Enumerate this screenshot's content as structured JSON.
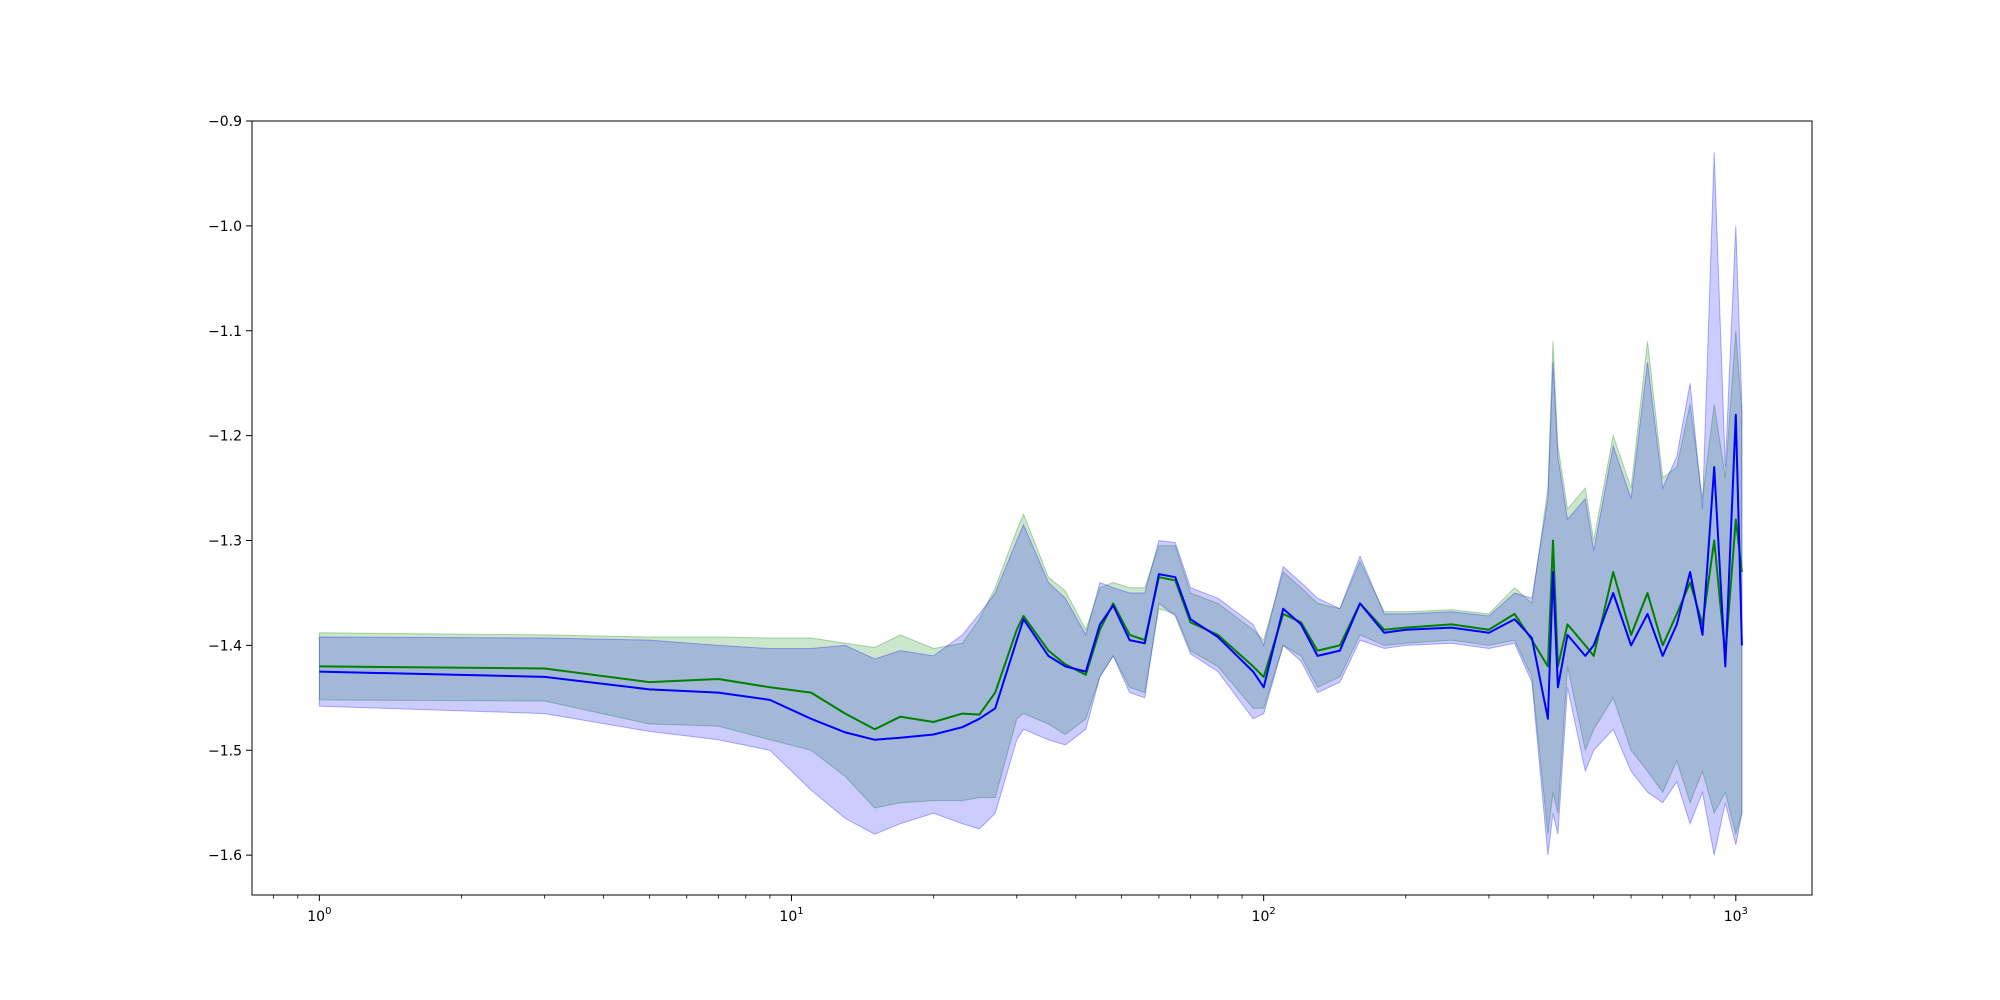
{
  "chart_data": {
    "type": "line",
    "title": "",
    "xlabel": "",
    "ylabel": "",
    "xscale": "log",
    "xlim": [
      0.72,
      1450
    ],
    "ylim": [
      -1.638,
      -0.9
    ],
    "grid": false,
    "legend": null,
    "x_ticks": [
      {
        "value": 1,
        "base": "10",
        "exp": "0"
      },
      {
        "value": 10,
        "base": "10",
        "exp": "1"
      },
      {
        "value": 100,
        "base": "10",
        "exp": "2"
      },
      {
        "value": 1000,
        "base": "10",
        "exp": "3"
      }
    ],
    "y_ticks": [
      {
        "value": -0.9,
        "label": "−0.9"
      },
      {
        "value": -1.0,
        "label": "−1.0"
      },
      {
        "value": -1.1,
        "label": "−1.1"
      },
      {
        "value": -1.2,
        "label": "−1.2"
      },
      {
        "value": -1.3,
        "label": "−1.3"
      },
      {
        "value": -1.4,
        "label": "−1.4"
      },
      {
        "value": -1.5,
        "label": "−1.5"
      },
      {
        "value": -1.6,
        "label": "−1.6"
      }
    ],
    "series": [
      {
        "color": "#008000",
        "band_color": "#008000",
        "band_opacity": 0.2,
        "x": [
          1,
          3,
          5,
          7,
          9,
          11,
          13,
          15,
          17,
          20,
          23,
          25,
          27,
          30,
          31,
          35,
          38,
          42,
          45,
          48,
          52,
          56,
          60,
          65,
          70,
          80,
          95,
          100,
          110,
          120,
          130,
          145,
          160,
          180,
          200,
          250,
          300,
          340,
          370,
          400,
          410,
          420,
          440,
          480,
          500,
          550,
          600,
          650,
          700,
          750,
          800,
          850,
          900,
          950,
          1000,
          1030
        ],
        "values": [
          -1.42,
          -1.422,
          -1.435,
          -1.432,
          -1.44,
          -1.445,
          -1.465,
          -1.48,
          -1.468,
          -1.473,
          -1.465,
          -1.466,
          -1.445,
          -1.385,
          -1.372,
          -1.405,
          -1.418,
          -1.428,
          -1.385,
          -1.36,
          -1.39,
          -1.395,
          -1.335,
          -1.338,
          -1.378,
          -1.39,
          -1.42,
          -1.43,
          -1.37,
          -1.378,
          -1.405,
          -1.4,
          -1.36,
          -1.385,
          -1.383,
          -1.38,
          -1.385,
          -1.37,
          -1.395,
          -1.42,
          -1.3,
          -1.42,
          -1.38,
          -1.4,
          -1.41,
          -1.33,
          -1.39,
          -1.35,
          -1.4,
          -1.37,
          -1.34,
          -1.38,
          -1.3,
          -1.41,
          -1.28,
          -1.33
        ],
        "lower": [
          -1.452,
          -1.453,
          -1.475,
          -1.477,
          -1.49,
          -1.5,
          -1.525,
          -1.555,
          -1.55,
          -1.548,
          -1.548,
          -1.545,
          -1.545,
          -1.47,
          -1.465,
          -1.475,
          -1.485,
          -1.47,
          -1.43,
          -1.41,
          -1.44,
          -1.445,
          -1.365,
          -1.37,
          -1.405,
          -1.42,
          -1.46,
          -1.46,
          -1.4,
          -1.41,
          -1.44,
          -1.43,
          -1.39,
          -1.4,
          -1.398,
          -1.395,
          -1.4,
          -1.395,
          -1.43,
          -1.58,
          -1.54,
          -1.56,
          -1.42,
          -1.5,
          -1.48,
          -1.45,
          -1.5,
          -1.52,
          -1.54,
          -1.51,
          -1.55,
          -1.52,
          -1.56,
          -1.54,
          -1.58,
          -1.56
        ],
        "upper": [
          -1.388,
          -1.39,
          -1.392,
          -1.392,
          -1.393,
          -1.393,
          -1.398,
          -1.402,
          -1.39,
          -1.403,
          -1.398,
          -1.375,
          -1.345,
          -1.29,
          -1.275,
          -1.335,
          -1.348,
          -1.385,
          -1.345,
          -1.34,
          -1.345,
          -1.345,
          -1.305,
          -1.305,
          -1.35,
          -1.36,
          -1.385,
          -1.395,
          -1.33,
          -1.345,
          -1.36,
          -1.365,
          -1.32,
          -1.368,
          -1.368,
          -1.366,
          -1.37,
          -1.345,
          -1.36,
          -1.25,
          -1.11,
          -1.21,
          -1.27,
          -1.25,
          -1.3,
          -1.2,
          -1.25,
          -1.11,
          -1.24,
          -1.23,
          -1.17,
          -1.26,
          -1.17,
          -1.24,
          -1.1,
          -1.18
        ]
      },
      {
        "color": "#0000ff",
        "band_color": "#0000ff",
        "band_opacity": 0.2,
        "x": [
          1,
          3,
          5,
          7,
          9,
          11,
          13,
          15,
          17,
          20,
          23,
          25,
          27,
          30,
          31,
          35,
          38,
          42,
          45,
          48,
          52,
          56,
          60,
          65,
          70,
          80,
          95,
          100,
          110,
          120,
          130,
          145,
          160,
          180,
          200,
          250,
          300,
          340,
          370,
          400,
          410,
          420,
          440,
          480,
          500,
          550,
          600,
          650,
          700,
          750,
          800,
          850,
          900,
          950,
          1000,
          1030
        ],
        "values": [
          -1.425,
          -1.43,
          -1.442,
          -1.445,
          -1.452,
          -1.47,
          -1.483,
          -1.49,
          -1.488,
          -1.485,
          -1.478,
          -1.47,
          -1.46,
          -1.395,
          -1.375,
          -1.41,
          -1.42,
          -1.425,
          -1.38,
          -1.362,
          -1.395,
          -1.398,
          -1.332,
          -1.335,
          -1.375,
          -1.392,
          -1.425,
          -1.44,
          -1.365,
          -1.38,
          -1.41,
          -1.405,
          -1.36,
          -1.388,
          -1.385,
          -1.383,
          -1.388,
          -1.375,
          -1.393,
          -1.47,
          -1.33,
          -1.44,
          -1.39,
          -1.41,
          -1.4,
          -1.35,
          -1.4,
          -1.37,
          -1.41,
          -1.38,
          -1.33,
          -1.39,
          -1.23,
          -1.42,
          -1.18,
          -1.4
        ],
        "lower": [
          -1.458,
          -1.465,
          -1.482,
          -1.49,
          -1.5,
          -1.538,
          -1.565,
          -1.58,
          -1.57,
          -1.56,
          -1.57,
          -1.575,
          -1.56,
          -1.49,
          -1.48,
          -1.49,
          -1.495,
          -1.48,
          -1.43,
          -1.41,
          -1.445,
          -1.45,
          -1.36,
          -1.372,
          -1.408,
          -1.425,
          -1.47,
          -1.465,
          -1.4,
          -1.415,
          -1.445,
          -1.435,
          -1.395,
          -1.403,
          -1.4,
          -1.398,
          -1.403,
          -1.398,
          -1.435,
          -1.6,
          -1.56,
          -1.58,
          -1.44,
          -1.52,
          -1.5,
          -1.48,
          -1.52,
          -1.54,
          -1.55,
          -1.53,
          -1.57,
          -1.54,
          -1.6,
          -1.55,
          -1.59,
          -1.56
        ],
        "upper": [
          -1.392,
          -1.393,
          -1.395,
          -1.4,
          -1.403,
          -1.403,
          -1.4,
          -1.413,
          -1.405,
          -1.41,
          -1.39,
          -1.37,
          -1.35,
          -1.3,
          -1.285,
          -1.34,
          -1.355,
          -1.39,
          -1.34,
          -1.345,
          -1.35,
          -1.35,
          -1.3,
          -1.302,
          -1.345,
          -1.355,
          -1.38,
          -1.4,
          -1.325,
          -1.34,
          -1.355,
          -1.365,
          -1.315,
          -1.37,
          -1.37,
          -1.368,
          -1.372,
          -1.35,
          -1.355,
          -1.26,
          -1.13,
          -1.22,
          -1.28,
          -1.26,
          -1.31,
          -1.21,
          -1.26,
          -1.13,
          -1.25,
          -1.22,
          -1.15,
          -1.27,
          -0.93,
          -1.23,
          -1.0,
          -1.17
        ]
      }
    ]
  }
}
